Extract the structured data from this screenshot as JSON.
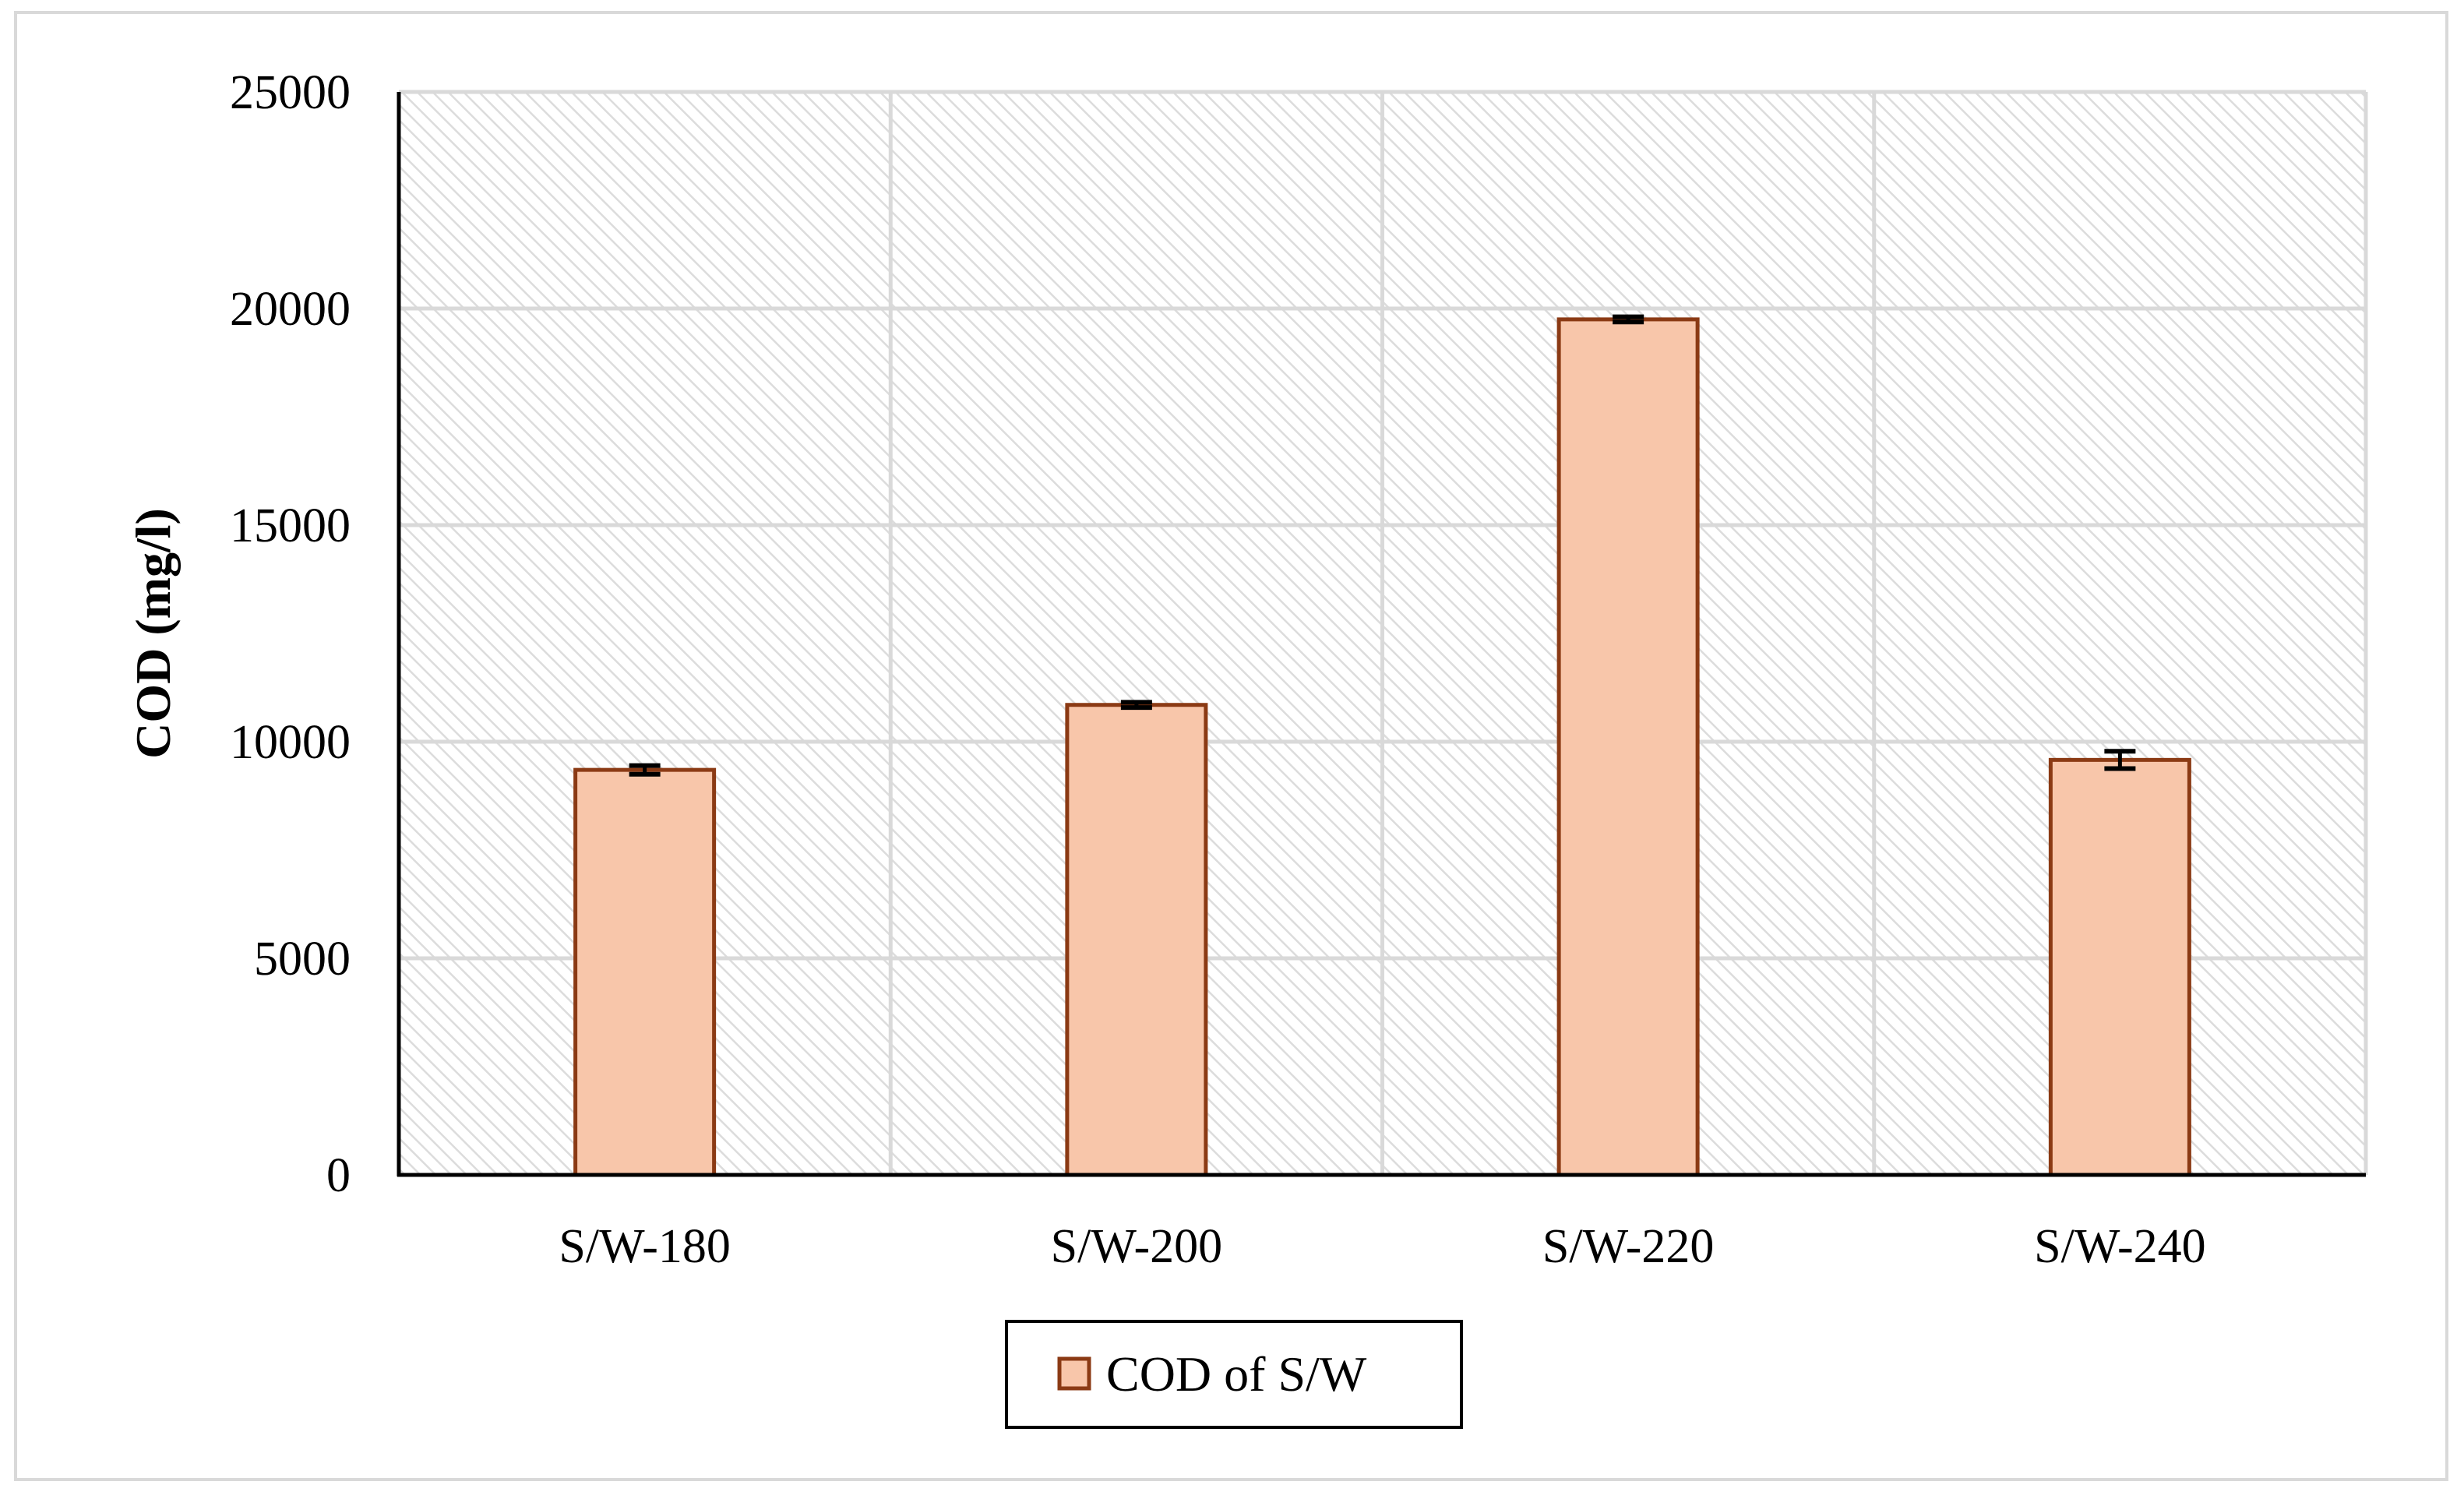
{
  "chart_data": {
    "type": "bar",
    "title": "",
    "xlabel": "",
    "ylabel": "COD (mg/l)",
    "ylim": [
      0,
      25000
    ],
    "yticks": [
      0,
      5000,
      10000,
      15000,
      20000,
      25000
    ],
    "categories": [
      "S/W-180",
      "S/W-200",
      "S/W-220",
      "S/W-240"
    ],
    "series": [
      {
        "name": "COD of S/W",
        "values": [
          9350,
          10850,
          19750,
          9580
        ],
        "errors": [
          100,
          60,
          60,
          200
        ]
      }
    ],
    "grid": true,
    "legend_position": "bottom",
    "colors": {
      "bar_fill": "#f8c6aa",
      "bar_stroke": "#8b3a14",
      "grid": "#d9d9d9",
      "plot_pattern": "#dcdcdc",
      "axis": "#000000"
    }
  }
}
